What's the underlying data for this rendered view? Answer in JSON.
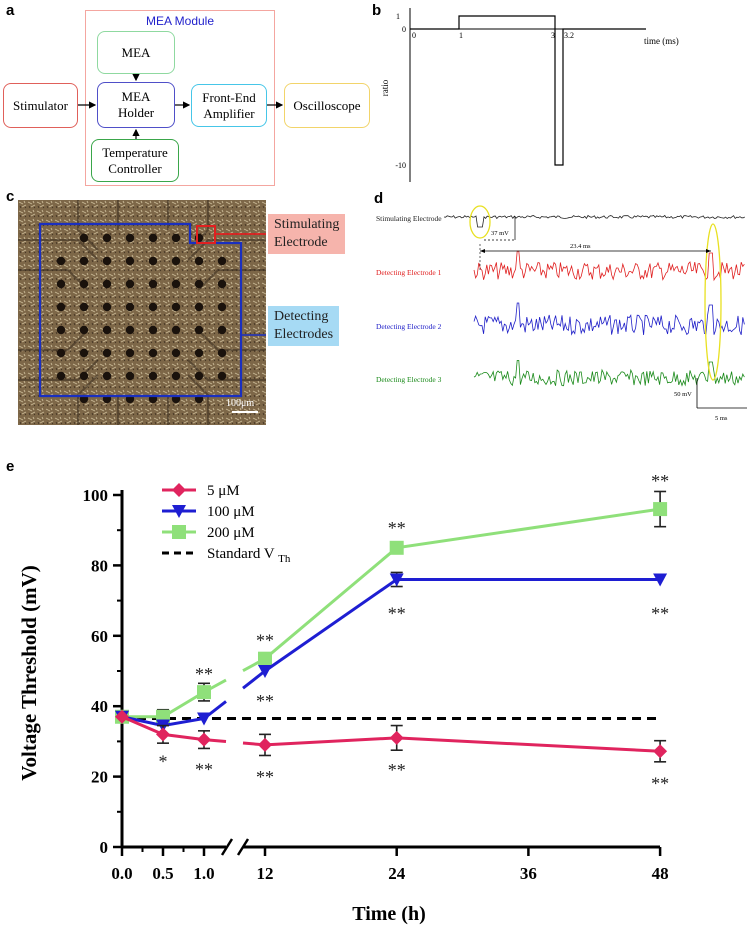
{
  "panels": {
    "a": "a",
    "b": "b",
    "c": "c",
    "d": "d",
    "e": "e"
  },
  "panel_a": {
    "module_title": "MEA Module",
    "stimulator": "Stimulator",
    "mea": "MEA",
    "holder": "MEA\nHolder",
    "frontend": "Front-End\nAmplifier",
    "oscilloscope": "Oscilloscope",
    "temperature": "Temperature\nController",
    "colors": {
      "module_border": "#f4a6a0",
      "module_title": "#2222cc",
      "stimulator": "#e0605a",
      "mea": "#8fd9a0",
      "holder": "#4f4fc8",
      "frontend": "#46c6e8",
      "oscilloscope": "#f2d46a",
      "temperature": "#3aa64a"
    }
  },
  "panel_b": {
    "ylabel": "ratio",
    "xlabel": "time (ms)",
    "tick_labels": {
      "y1": "1",
      "y0": "0",
      "ym10": "-10",
      "x0": "0",
      "x1": "1",
      "x3": "3",
      "x32": "3.2"
    }
  },
  "panel_c": {
    "stim_label": "Stimulating\nElectrode",
    "detect_label": "Detecting\nElectrodes",
    "scale": "100μm",
    "colors": {
      "stim_box": "#f6b4ac",
      "detect_box": "#a6daf4",
      "outline": "#1a2fc0",
      "stim_outline": "#e02020"
    }
  },
  "panel_d": {
    "traces": [
      {
        "label": "Stimulating Electrode",
        "color": "#222222"
      },
      {
        "label": "Detecting Electrode 1",
        "color": "#e02020"
      },
      {
        "label": "Detecting Electrode 2",
        "color": "#2020c8"
      },
      {
        "label": "Detecting Electrode 3",
        "color": "#1a8a1a"
      }
    ],
    "amp_label": "37 mV",
    "latency_label": "23.4 ms",
    "scale_v": "50 mV",
    "scale_t": "5 ms"
  },
  "chart_data": {
    "type": "line",
    "ylabel": "Voltage Threshold (mV)",
    "xlabel": "Time (h)",
    "ylim": [
      0,
      100
    ],
    "yticks": [
      "0",
      "20",
      "40",
      "60",
      "80",
      "100"
    ],
    "xticks": [
      "0.0",
      "0.5",
      "1.0",
      "12",
      "24",
      "36",
      "48"
    ],
    "x": [
      0,
      0.5,
      1,
      12,
      24,
      48
    ],
    "threshold": {
      "name": "Standard V Th",
      "value": 36.5
    },
    "series": [
      {
        "name": "5 μM",
        "color": "#e0245e",
        "marker": "diamond",
        "values": [
          37,
          32,
          30.5,
          29,
          31,
          27.2
        ],
        "err": [
          1,
          2.5,
          2.5,
          3,
          3.5,
          3
        ],
        "sig": [
          "",
          "*",
          "**",
          "**",
          "**",
          "**"
        ]
      },
      {
        "name": "100 μM",
        "color": "#1e1ed2",
        "marker": "triangle-down",
        "values": [
          37,
          34.5,
          36.5,
          50,
          76,
          76
        ],
        "err": [
          1,
          1,
          1,
          1,
          2,
          1
        ],
        "sig": [
          "",
          "",
          "",
          "**",
          "**",
          "**"
        ]
      },
      {
        "name": "200 μM",
        "color": "#8fe07a",
        "marker": "square",
        "values": [
          37,
          37,
          44,
          53.5,
          85,
          96
        ],
        "err": [
          1,
          2,
          2.5,
          1,
          1,
          5
        ],
        "sig": [
          "",
          "",
          "**",
          "**",
          "**",
          "**"
        ]
      }
    ]
  }
}
